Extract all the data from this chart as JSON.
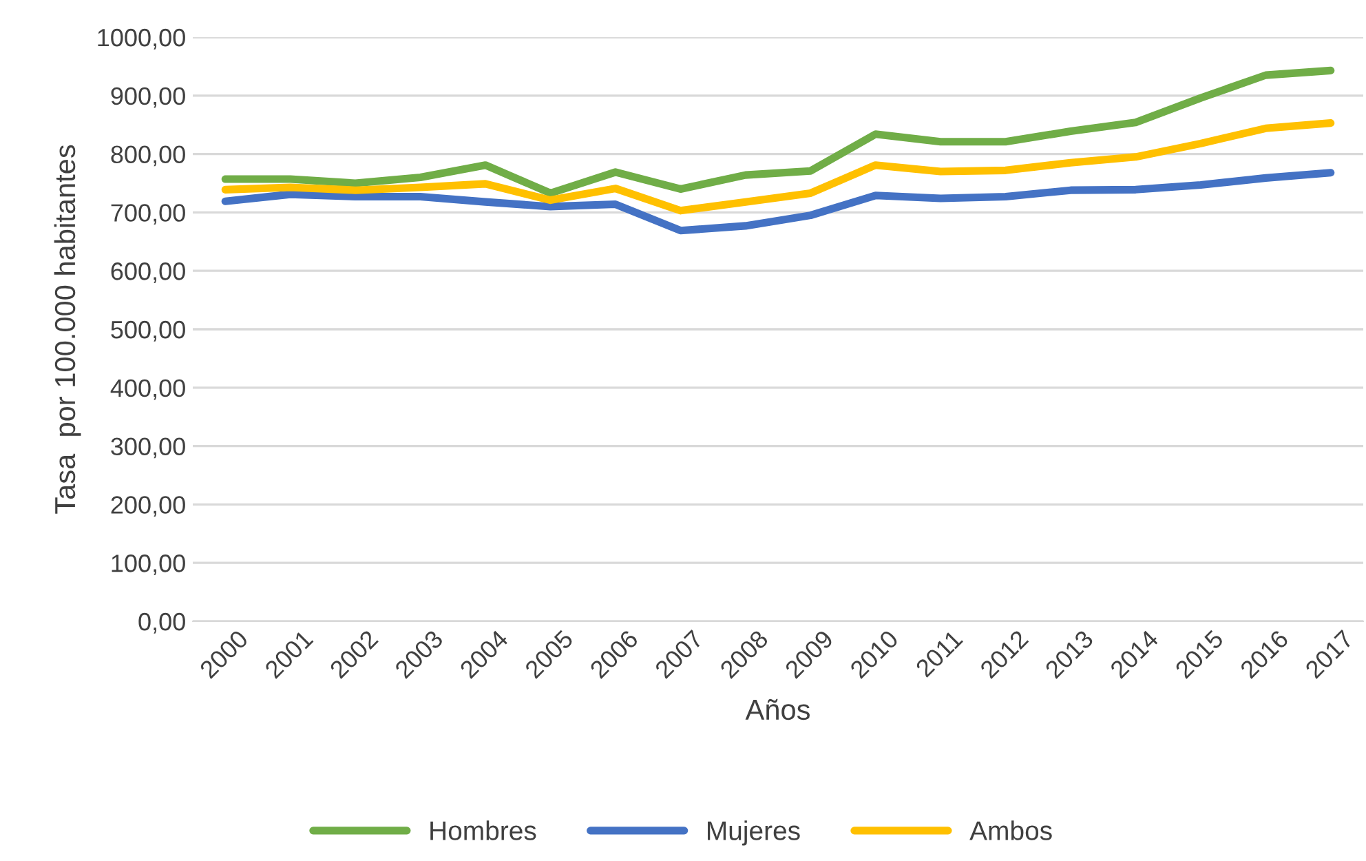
{
  "chart_data": {
    "type": "line",
    "xlabel": "Años",
    "ylabel": "Tasa  por 100.000 habitantes",
    "categories": [
      "2000",
      "2001",
      "2002",
      "2003",
      "2004",
      "2005",
      "2006",
      "2007",
      "2008",
      "2009",
      "2010",
      "2011",
      "2012",
      "2013",
      "2014",
      "2015",
      "2016",
      "2017"
    ],
    "series": [
      {
        "name": "Hombres",
        "color": "#70ad47",
        "values": [
          757,
          757,
          750,
          760,
          781,
          733,
          769,
          740,
          764,
          771,
          834,
          821,
          821,
          839,
          854,
          896,
          935,
          943
        ]
      },
      {
        "name": "Mujeres",
        "color": "#4472c4",
        "values": [
          719,
          731,
          727,
          727,
          718,
          710,
          714,
          669,
          677,
          695,
          729,
          724,
          727,
          738,
          739,
          747,
          759,
          768
        ]
      },
      {
        "name": "Ambos",
        "color": "#ffc000",
        "values": [
          739,
          743,
          738,
          743,
          749,
          721,
          741,
          703,
          718,
          733,
          781,
          770,
          772,
          785,
          795,
          818,
          844,
          853
        ]
      }
    ],
    "ylim": [
      0,
      1000
    ],
    "yticks": [
      {
        "value": 0,
        "label": "0,00"
      },
      {
        "value": 100,
        "label": "100,00"
      },
      {
        "value": 200,
        "label": "200,00"
      },
      {
        "value": 300,
        "label": "300,00"
      },
      {
        "value": 400,
        "label": "400,00"
      },
      {
        "value": 500,
        "label": "500,00"
      },
      {
        "value": 600,
        "label": "600,00"
      },
      {
        "value": 700,
        "label": "700,00"
      },
      {
        "value": 800,
        "label": "800,00"
      },
      {
        "value": 900,
        "label": "900,00"
      },
      {
        "value": 1000,
        "label": "1000,00"
      }
    ],
    "grid": "y",
    "legend": "bottom",
    "marker": "none",
    "line_style": "solid"
  }
}
